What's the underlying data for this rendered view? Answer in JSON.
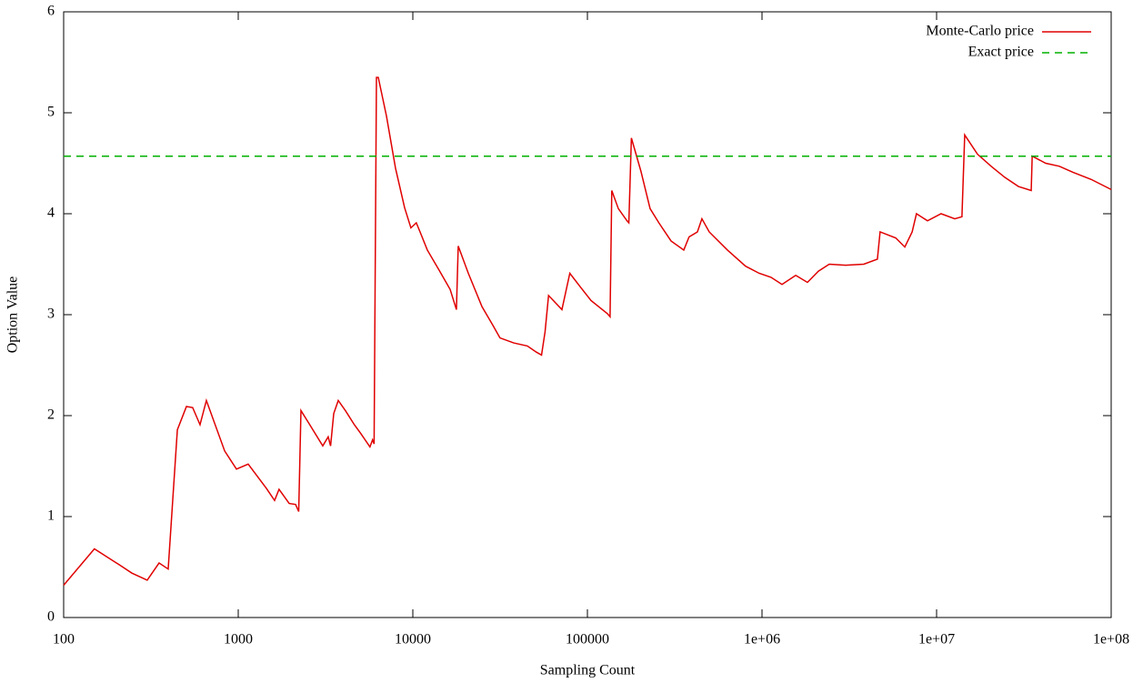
{
  "chart_data": {
    "type": "line",
    "xlabel": "Sampling Count",
    "ylabel": "Option Value",
    "xscale": "log",
    "legend": "upper right",
    "xlim": [
      100,
      100000000
    ],
    "ylim": [
      0,
      6
    ],
    "xticks": [
      100,
      1000,
      10000,
      100000,
      {
        "value": 1000000,
        "label": "1e+06"
      },
      {
        "value": 10000000,
        "label": "1e+07"
      },
      {
        "value": 100000000,
        "label": "1e+08"
      }
    ],
    "yticks": [
      0,
      1,
      2,
      3,
      4,
      5,
      6
    ],
    "series": [
      {
        "name": "Monte-Carlo price",
        "color": "#e00000",
        "dash": false,
        "x": [
          100,
          150,
          205,
          246,
          301,
          352,
          397,
          448,
          505,
          548,
          604,
          657,
          836,
          977,
          1140,
          1449,
          1615,
          1713,
          1958,
          2130,
          2220,
          2287,
          2547,
          3049,
          3275,
          3380,
          3523,
          3740,
          4108,
          4624,
          5045,
          5680,
          5880,
          6000,
          6190,
          6340,
          7060,
          7960,
          8970,
          9750,
          10470,
          11000,
          12110,
          14150,
          16360,
          17770,
          18200,
          20790,
          24890,
          28630,
          31560,
          37840,
          45290,
          50890,
          54600,
          57200,
          59900,
          71450,
          79300,
          90600,
          104900,
          130200,
          134800,
          137900,
          150400,
          168600,
          172700,
          178600,
          202600,
          228600,
          256600,
          301300,
          356400,
          382200,
          426600,
          452700,
          498500,
          633800,
          805400,
          963900,
          1126000,
          1302000,
          1560000,
          1820000,
          2103000,
          2427000,
          3012000,
          3828000,
          4581000,
          4747000,
          5834000,
          6577000,
          7245000,
          7670000,
          8872000,
          10610000,
          12710000,
          13970000,
          14490000,
          17150000,
          20530000,
          24600000,
          29430000,
          34830000,
          35290000,
          42170000,
          50470000,
          60400000,
          76800000,
          100000000
        ],
        "values": [
          0.32,
          0.68,
          0.53,
          0.44,
          0.37,
          0.54,
          0.48,
          1.86,
          2.09,
          2.08,
          1.91,
          2.15,
          1.65,
          1.47,
          1.52,
          1.28,
          1.16,
          1.27,
          1.13,
          1.12,
          1.05,
          2.05,
          1.92,
          1.7,
          1.79,
          1.7,
          2.02,
          2.15,
          2.05,
          1.91,
          1.82,
          1.69,
          1.76,
          1.72,
          5.35,
          5.35,
          4.97,
          4.45,
          4.06,
          3.86,
          3.91,
          3.82,
          3.64,
          3.44,
          3.25,
          3.05,
          3.68,
          3.41,
          3.08,
          2.9,
          2.77,
          2.72,
          2.69,
          2.63,
          2.6,
          2.83,
          3.19,
          3.05,
          3.41,
          3.28,
          3.14,
          3.01,
          2.98,
          4.23,
          4.05,
          3.93,
          3.91,
          4.75,
          4.42,
          4.05,
          3.91,
          3.73,
          3.64,
          3.77,
          3.82,
          3.95,
          3.82,
          3.64,
          3.48,
          3.41,
          3.37,
          3.3,
          3.39,
          3.32,
          3.43,
          3.5,
          3.49,
          3.5,
          3.55,
          3.82,
          3.76,
          3.67,
          3.82,
          4.0,
          3.93,
          4.0,
          3.95,
          3.97,
          4.78,
          4.59,
          4.47,
          4.36,
          4.27,
          4.23,
          4.57,
          4.5,
          4.47,
          4.41,
          4.34,
          4.24
        ]
      },
      {
        "name": "Exact price",
        "color": "#00b000",
        "dash": true,
        "x": [
          100,
          100000000
        ],
        "values": [
          4.57,
          4.57
        ]
      }
    ]
  }
}
